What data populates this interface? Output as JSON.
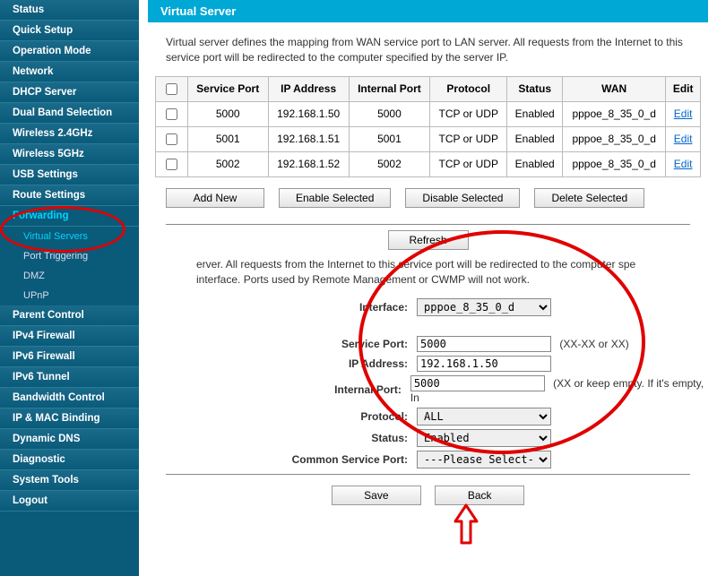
{
  "sidebar": {
    "items": [
      {
        "label": "Status",
        "active": false,
        "sub": []
      },
      {
        "label": "Quick Setup",
        "active": false,
        "sub": []
      },
      {
        "label": "Operation Mode",
        "active": false,
        "sub": []
      },
      {
        "label": "Network",
        "active": false,
        "sub": []
      },
      {
        "label": "DHCP Server",
        "active": false,
        "sub": []
      },
      {
        "label": "Dual Band Selection",
        "active": false,
        "sub": []
      },
      {
        "label": "Wireless 2.4GHz",
        "active": false,
        "sub": []
      },
      {
        "label": "Wireless 5GHz",
        "active": false,
        "sub": []
      },
      {
        "label": "USB Settings",
        "active": false,
        "sub": []
      },
      {
        "label": "Route Settings",
        "active": false,
        "sub": []
      },
      {
        "label": "Forwarding",
        "active": true,
        "sub": [
          {
            "label": "Virtual Servers",
            "active": true
          },
          {
            "label": "Port Triggering",
            "active": false
          },
          {
            "label": "DMZ",
            "active": false
          },
          {
            "label": "UPnP",
            "active": false
          }
        ]
      },
      {
        "label": "Parent Control",
        "active": false,
        "sub": []
      },
      {
        "label": "IPv4 Firewall",
        "active": false,
        "sub": []
      },
      {
        "label": "IPv6 Firewall",
        "active": false,
        "sub": []
      },
      {
        "label": "IPv6 Tunnel",
        "active": false,
        "sub": []
      },
      {
        "label": "Bandwidth Control",
        "active": false,
        "sub": []
      },
      {
        "label": "IP & MAC Binding",
        "active": false,
        "sub": []
      },
      {
        "label": "Dynamic DNS",
        "active": false,
        "sub": []
      },
      {
        "label": "Diagnostic",
        "active": false,
        "sub": []
      },
      {
        "label": "System Tools",
        "active": false,
        "sub": []
      },
      {
        "label": "Logout",
        "active": false,
        "sub": []
      }
    ]
  },
  "page": {
    "title": "Virtual Server",
    "description": "Virtual server defines the mapping from WAN service port to LAN server. All requests from the Internet to this service port will be redirected to the computer specified by the server IP."
  },
  "table": {
    "headers": [
      "Service Port",
      "IP Address",
      "Internal Port",
      "Protocol",
      "Status",
      "WAN",
      "Edit"
    ],
    "rows": [
      {
        "service_port": "5000",
        "ip": "192.168.1.50",
        "internal_port": "5000",
        "protocol": "TCP or UDP",
        "status": "Enabled",
        "wan": "pppoe_8_35_0_d",
        "edit": "Edit"
      },
      {
        "service_port": "5001",
        "ip": "192.168.1.51",
        "internal_port": "5001",
        "protocol": "TCP or UDP",
        "status": "Enabled",
        "wan": "pppoe_8_35_0_d",
        "edit": "Edit"
      },
      {
        "service_port": "5002",
        "ip": "192.168.1.52",
        "internal_port": "5002",
        "protocol": "TCP or UDP",
        "status": "Enabled",
        "wan": "pppoe_8_35_0_d",
        "edit": "Edit"
      }
    ]
  },
  "buttons": {
    "add_new": "Add New",
    "enable_selected": "Enable Selected",
    "disable_selected": "Disable Selected",
    "delete_selected": "Delete Selected",
    "refresh": "Refresh",
    "save": "Save",
    "back": "Back"
  },
  "form": {
    "description": "erver. All requests from the Internet to this service port will be redirected to the computer specified interface. Ports used by Remote Management or CWMP will not work.",
    "desc_line1": "erver. All requests from the Internet to this service port will be redirected to the computer spe",
    "desc_line2": "interface. Ports used by Remote Management or CWMP will not work.",
    "labels": {
      "interface": "Interface:",
      "service_port": "Service Port:",
      "ip_address": "IP Address:",
      "internal_port": "Internal Port:",
      "protocol": "Protocol:",
      "status": "Status:",
      "common_service_port": "Common Service Port:"
    },
    "values": {
      "interface": "pppoe_8_35_0_d",
      "service_port": "5000",
      "ip_address": "192.168.1.50",
      "internal_port": "5000",
      "protocol": "ALL",
      "status": "Enabled",
      "common_service_port": "---Please Select---"
    },
    "hints": {
      "service_port": "(XX-XX or XX)",
      "internal_port": "(XX or keep empty. If it's empty, In"
    }
  },
  "colors": {
    "accent": "#00a8d6",
    "sidebar_bg": "#0a5a7a",
    "sidebar_active": "#00d4ff",
    "annotation": "#e00000",
    "border": "#bbbbbb",
    "link": "#0066cc"
  }
}
